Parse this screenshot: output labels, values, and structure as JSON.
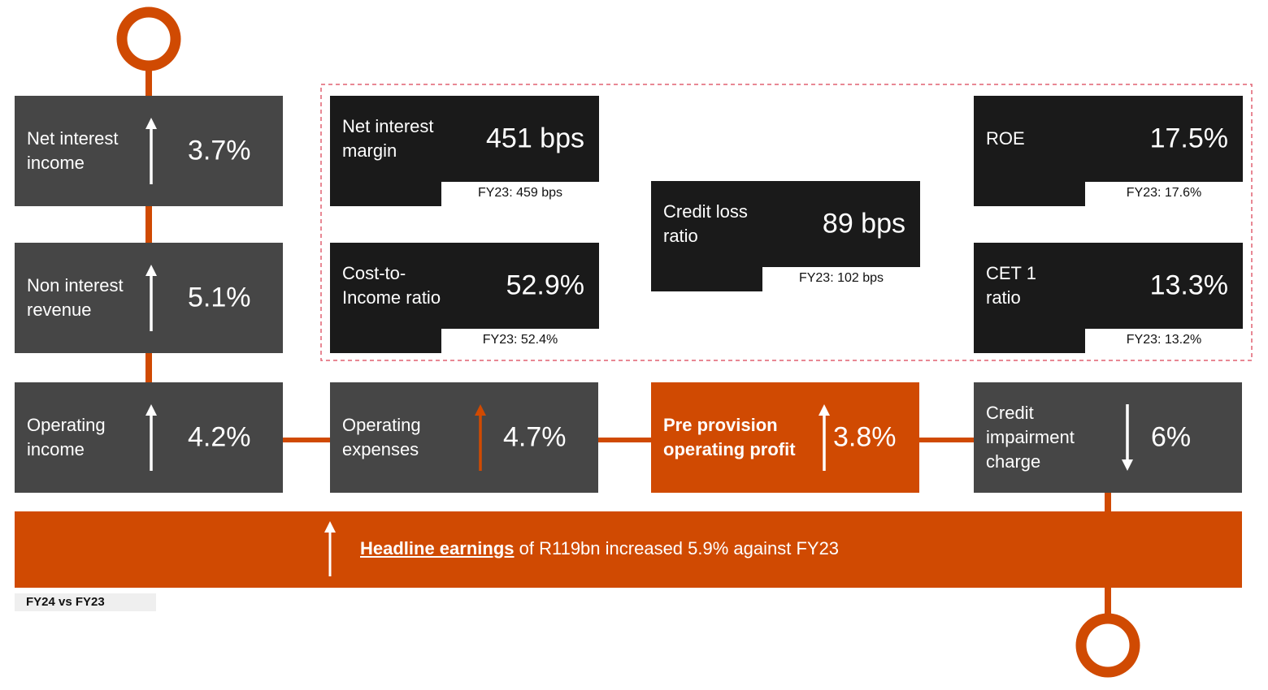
{
  "growth_boxes": [
    {
      "label": [
        "Net interest",
        "income"
      ],
      "value": "3.7%",
      "trend": "up"
    },
    {
      "label": [
        "Non interest",
        "revenue"
      ],
      "value": "5.1%",
      "trend": "up"
    },
    {
      "label": [
        "Operating",
        "income"
      ],
      "value": "4.2%",
      "trend": "up"
    },
    {
      "label": [
        "Operating",
        "expenses"
      ],
      "value": "4.7%",
      "trend": "up"
    },
    {
      "label": [
        "Pre provision",
        "operating profit"
      ],
      "value": "3.8%",
      "trend": "up"
    },
    {
      "label": [
        "Credit",
        "impairment",
        "charge"
      ],
      "value": "6%",
      "trend": "down"
    }
  ],
  "ratio_boxes": [
    {
      "label": [
        "Net interest",
        "margin"
      ],
      "value": "451 bps",
      "prior": "FY23: 459 bps"
    },
    {
      "label": [
        "Cost-to-",
        "Income ratio"
      ],
      "value": "52.9%",
      "prior": "FY23: 52.4%"
    },
    {
      "label": [
        "Credit loss",
        "ratio"
      ],
      "value": "89 bps",
      "prior": "FY23: 102 bps"
    },
    {
      "label": [
        "ROE"
      ],
      "value": "17.5%",
      "prior": "FY23: 17.6%"
    },
    {
      "label": [
        "CET 1",
        "ratio"
      ],
      "value": "13.3%",
      "prior": "FY23: 13.2%"
    }
  ],
  "banner": {
    "link": "Headline earnings",
    "text": "of R119bn increased 5.9% against FY23"
  },
  "footnote": "FY24 vs FY23"
}
